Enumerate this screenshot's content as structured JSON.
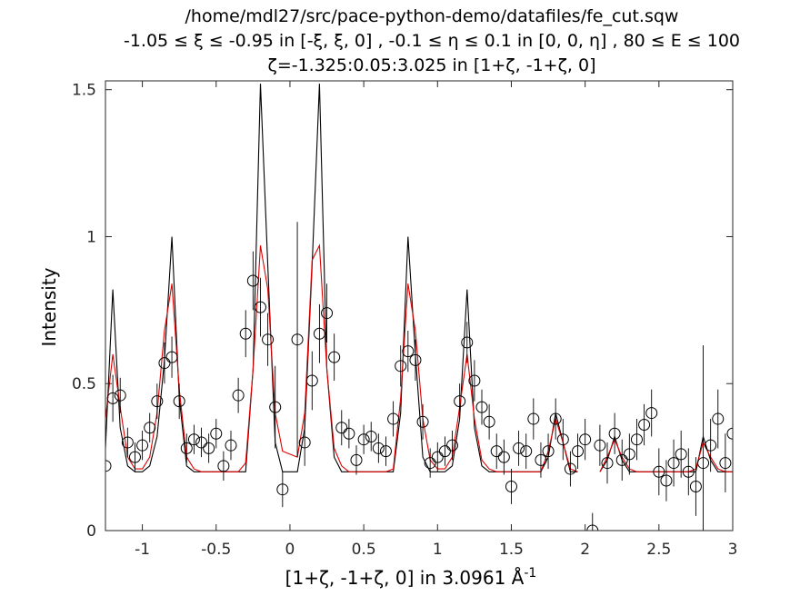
{
  "chart_data": {
    "type": "line",
    "title_lines": [
      "/home/mdl27/src/pace-python-demo/datafiles/fe_cut.sqw",
      "-1.05 ≤ ξ ≤ -0.95 in [-ξ, ξ, 0] , -0.1 ≤ η ≤ 0.1 in [0, 0, η] , 80 ≤ E ≤ 100",
      "ζ=-1.325:0.05:3.025 in [1+ζ, -1+ζ, 0]"
    ],
    "xlabel": "[1+ζ, -1+ζ, 0] in 3.0961 Å",
    "xlabel_superscript": "-1",
    "ylabel": "Intensity",
    "xlim": [
      -1.25,
      3.0
    ],
    "ylim": [
      0,
      1.53
    ],
    "x_ticks": [
      -1,
      -0.5,
      0,
      0.5,
      1,
      1.5,
      2,
      2.5,
      3
    ],
    "x_tick_labels": [
      "-1",
      "-0.5",
      "0",
      "0.5",
      "1",
      "1.5",
      "2",
      "2.5",
      "3"
    ],
    "y_ticks": [
      0,
      0.5,
      1,
      1.5
    ],
    "y_tick_labels": [
      "0",
      "0.5",
      "1",
      "1.5"
    ],
    "grid": false,
    "series_colors": {
      "black_line": "#000000",
      "red_line": "#e00000",
      "markers": "#000000"
    },
    "series": [
      {
        "style": "line-black",
        "x": [
          -1.25,
          -1.2,
          -1.15,
          -1.1,
          -1.05,
          -1.0,
          -0.95,
          -0.9,
          -0.85,
          -0.8,
          -0.75,
          -0.7,
          -0.65,
          -0.6,
          -0.55,
          -0.5,
          -0.45,
          -0.4,
          -0.35,
          -0.3,
          -0.25,
          -0.2,
          -0.15,
          -0.1,
          -0.05,
          0.05,
          0.1,
          0.15,
          0.2,
          0.25,
          0.3,
          0.35,
          0.4,
          0.45,
          0.5,
          0.55,
          0.6,
          0.65,
          0.7,
          0.75,
          0.8,
          0.85,
          0.9,
          0.95,
          1.0,
          1.05,
          1.1,
          1.15,
          1.2,
          1.25,
          1.3,
          1.35,
          1.4,
          1.45,
          1.5,
          1.55,
          1.6,
          1.65,
          1.7,
          1.75,
          1.8,
          1.85,
          1.9,
          1.95,
          2.0,
          2.05,
          2.1,
          2.15,
          2.2,
          2.25,
          2.3,
          2.35,
          2.4,
          2.45,
          2.5,
          2.55,
          2.6,
          2.65,
          2.7,
          2.75,
          2.8,
          2.85,
          2.9,
          2.95,
          3.0
        ],
        "y": [
          0.28,
          0.82,
          0.35,
          0.22,
          0.2,
          0.2,
          0.22,
          0.32,
          0.58,
          1.0,
          0.45,
          0.22,
          0.2,
          0.2,
          0.2,
          0.2,
          0.2,
          0.2,
          0.2,
          0.2,
          0.55,
          1.52,
          0.9,
          0.3,
          0.2,
          0.2,
          0.35,
          0.9,
          1.52,
          0.55,
          0.25,
          0.2,
          0.2,
          0.2,
          0.2,
          0.2,
          0.2,
          0.2,
          0.2,
          0.4,
          1.0,
          0.6,
          0.25,
          0.2,
          0.2,
          0.2,
          0.22,
          0.38,
          0.82,
          0.35,
          0.22,
          0.2,
          0.2,
          0.2,
          0.2,
          0.2,
          0.2,
          0.2,
          0.2,
          0.25,
          0.4,
          0.3,
          0.2,
          0.2,
          null,
          null,
          0.2,
          0.24,
          0.32,
          0.24,
          0.2,
          0.2,
          0.2,
          0.2,
          0.2,
          0.2,
          0.2,
          0.2,
          0.2,
          0.2,
          0.32,
          0.24,
          0.2,
          0.2,
          0.2
        ]
      },
      {
        "style": "line-red",
        "x": [
          -1.25,
          -1.2,
          -1.15,
          -1.1,
          -1.05,
          -1.0,
          -0.95,
          -0.9,
          -0.85,
          -0.8,
          -0.75,
          -0.7,
          -0.65,
          -0.6,
          -0.55,
          -0.5,
          -0.45,
          -0.4,
          -0.35,
          -0.3,
          -0.25,
          -0.2,
          -0.15,
          -0.1,
          -0.05,
          0.05,
          0.1,
          0.15,
          0.2,
          0.25,
          0.3,
          0.35,
          0.4,
          0.45,
          0.5,
          0.55,
          0.6,
          0.65,
          0.7,
          0.75,
          0.8,
          0.85,
          0.9,
          0.95,
          1.0,
          1.05,
          1.1,
          1.15,
          1.2,
          1.25,
          1.3,
          1.35,
          1.4,
          1.45,
          1.5,
          1.55,
          1.6,
          1.65,
          1.7,
          1.75,
          1.8,
          1.85,
          1.9,
          1.95,
          2.0,
          2.05,
          2.1,
          2.15,
          2.2,
          2.25,
          2.3,
          2.35,
          2.4,
          2.45,
          2.5,
          2.55,
          2.6,
          2.65,
          2.7,
          2.75,
          2.8,
          2.85,
          2.9,
          2.95,
          3.0
        ],
        "y": [
          0.38,
          0.6,
          0.42,
          0.25,
          0.21,
          0.21,
          0.25,
          0.4,
          0.68,
          0.84,
          0.48,
          0.25,
          0.21,
          0.2,
          0.2,
          0.2,
          0.2,
          0.2,
          0.2,
          0.23,
          0.55,
          0.97,
          0.82,
          0.4,
          0.27,
          0.25,
          0.4,
          0.92,
          0.97,
          0.55,
          0.28,
          0.22,
          0.2,
          0.2,
          0.2,
          0.2,
          0.2,
          0.2,
          0.21,
          0.45,
          0.84,
          0.68,
          0.38,
          0.24,
          0.21,
          0.21,
          0.25,
          0.42,
          0.6,
          0.38,
          0.24,
          0.21,
          0.2,
          0.2,
          0.2,
          0.2,
          0.2,
          0.2,
          0.2,
          0.27,
          0.38,
          0.3,
          0.21,
          0.2,
          null,
          null,
          0.2,
          0.25,
          0.31,
          0.25,
          0.21,
          0.2,
          0.2,
          0.2,
          0.2,
          0.2,
          0.2,
          0.2,
          0.2,
          0.21,
          0.3,
          0.25,
          0.21,
          0.2,
          0.2
        ]
      },
      {
        "style": "markers-errorbars",
        "x": [
          -1.25,
          -1.2,
          -1.15,
          -1.1,
          -1.05,
          -1.0,
          -0.95,
          -0.9,
          -0.85,
          -0.8,
          -0.75,
          -0.7,
          -0.65,
          -0.6,
          -0.55,
          -0.5,
          -0.45,
          -0.4,
          -0.35,
          -0.3,
          -0.25,
          -0.2,
          -0.15,
          -0.1,
          -0.05,
          0.05,
          0.1,
          0.15,
          0.2,
          0.25,
          0.3,
          0.35,
          0.4,
          0.45,
          0.5,
          0.55,
          0.6,
          0.65,
          0.7,
          0.75,
          0.8,
          0.85,
          0.9,
          0.95,
          1.0,
          1.05,
          1.1,
          1.15,
          1.2,
          1.25,
          1.3,
          1.35,
          1.4,
          1.45,
          1.5,
          1.55,
          1.6,
          1.65,
          1.7,
          1.75,
          1.8,
          1.85,
          1.9,
          1.95,
          2.0,
          2.05,
          2.1,
          2.15,
          2.2,
          2.25,
          2.3,
          2.35,
          2.4,
          2.45,
          2.5,
          2.55,
          2.6,
          2.65,
          2.7,
          2.75,
          2.8,
          2.85,
          2.9,
          2.95,
          3.0
        ],
        "y": [
          0.22,
          0.45,
          0.46,
          0.3,
          0.25,
          0.29,
          0.35,
          0.44,
          0.57,
          0.59,
          0.44,
          0.28,
          0.31,
          0.3,
          0.28,
          0.33,
          0.22,
          0.29,
          0.46,
          0.67,
          0.85,
          0.76,
          0.65,
          0.42,
          0.14,
          0.65,
          0.3,
          0.51,
          0.67,
          0.74,
          0.59,
          0.35,
          0.33,
          0.24,
          0.31,
          0.32,
          0.28,
          0.27,
          0.38,
          0.56,
          0.61,
          0.58,
          0.37,
          0.23,
          0.25,
          0.27,
          0.29,
          0.44,
          0.64,
          0.51,
          0.42,
          0.37,
          0.27,
          0.25,
          0.15,
          0.28,
          0.27,
          0.38,
          0.24,
          0.27,
          0.38,
          0.31,
          0.21,
          0.27,
          0.31,
          0.0,
          0.29,
          0.23,
          0.33,
          0.24,
          0.26,
          0.31,
          0.36,
          0.4,
          0.2,
          0.17,
          0.23,
          0.26,
          0.2,
          0.15,
          0.23,
          0.29,
          0.38,
          0.23,
          0.33
        ],
        "err": [
          0.2,
          0.08,
          0.06,
          0.05,
          0.05,
          0.05,
          0.05,
          0.06,
          0.07,
          0.07,
          0.06,
          0.05,
          0.05,
          0.05,
          0.05,
          0.05,
          0.05,
          0.05,
          0.06,
          0.08,
          0.1,
          0.1,
          0.09,
          0.14,
          0.06,
          0.4,
          0.08,
          0.1,
          0.1,
          0.1,
          0.08,
          0.06,
          0.05,
          0.05,
          0.05,
          0.05,
          0.05,
          0.05,
          0.06,
          0.07,
          0.07,
          0.07,
          0.06,
          0.05,
          0.05,
          0.05,
          0.05,
          0.06,
          0.07,
          0.07,
          0.06,
          0.06,
          0.06,
          0.06,
          0.06,
          0.06,
          0.06,
          0.07,
          0.06,
          0.06,
          0.07,
          0.07,
          0.06,
          0.06,
          0.07,
          0.06,
          0.07,
          0.07,
          0.07,
          0.07,
          0.07,
          0.07,
          0.07,
          0.08,
          0.08,
          0.07,
          0.08,
          0.08,
          0.08,
          0.1,
          0.4,
          0.09,
          0.1,
          0.1,
          0.1
        ]
      }
    ]
  }
}
